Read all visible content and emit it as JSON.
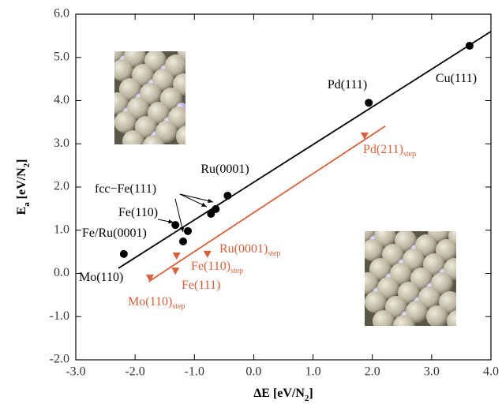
{
  "chart_data": {
    "type": "scatter",
    "xlabel": [
      {
        "text": "ΔE [eV/N"
      },
      {
        "text": "2",
        "sub": true
      },
      {
        "text": "]"
      }
    ],
    "ylabel": [
      {
        "text": "E"
      },
      {
        "text": "a",
        "sub": true
      },
      {
        "text": " [eV/N"
      },
      {
        "text": "2",
        "sub": true
      },
      {
        "text": "]"
      }
    ],
    "xlim": [
      -3,
      4
    ],
    "xticks": [
      {
        "value": -3,
        "label": "-3.0"
      },
      {
        "value": -2,
        "label": "-2.0"
      },
      {
        "value": -1,
        "label": "-1.0"
      },
      {
        "value": 0,
        "label": "0.0"
      },
      {
        "value": 1,
        "label": "1.0"
      },
      {
        "value": 2,
        "label": "2.0"
      },
      {
        "value": 3,
        "label": "3.0"
      },
      {
        "value": 4,
        "label": "4.0"
      }
    ],
    "ylim": [
      -2,
      6
    ],
    "yticks": [
      {
        "value": -2,
        "label": "-2.0"
      },
      {
        "value": -1,
        "label": "-1.0"
      },
      {
        "value": 0,
        "label": "0.0"
      },
      {
        "value": 1,
        "label": "1.0"
      },
      {
        "value": 2,
        "label": "2.0"
      },
      {
        "value": 3,
        "label": "3.0"
      },
      {
        "value": 4,
        "label": "4.0"
      },
      {
        "value": 5,
        "label": "5.0"
      },
      {
        "value": 6,
        "label": "6.0"
      }
    ],
    "series": [
      {
        "color": "#000000",
        "marker": "circle",
        "x": [
          -2.19,
          -1.32,
          -1.19,
          -1.11,
          -0.72,
          -0.64,
          -0.44,
          1.94,
          3.64
        ],
        "values": [
          0.45,
          1.12,
          0.74,
          0.98,
          1.38,
          1.49,
          1.8,
          3.95,
          5.27
        ]
      },
      {
        "color": "#d9603b",
        "marker": "triangle",
        "x": [
          -1.75,
          -1.3,
          -1.32,
          -0.78,
          1.87
        ],
        "values": [
          -0.1,
          0.41,
          0.06,
          0.45,
          3.19
        ]
      }
    ],
    "fit_lines": [
      {
        "color": "#000000",
        "x": [
          -2.28,
          4.0
        ],
        "values": [
          0.12,
          5.6
        ]
      },
      {
        "color": "#d9603b",
        "x": [
          -1.77,
          2.22
        ],
        "values": [
          -0.19,
          3.41
        ]
      }
    ],
    "annotations": [
      {
        "text": "Cu(111)",
        "color": "#000000"
      },
      {
        "text": "Pd(111)",
        "color": "#000000"
      },
      {
        "text": "Ru(0001)",
        "color": "#000000"
      },
      {
        "text": "fcc−Fe(111)",
        "color": "#000000"
      },
      {
        "text": "Fe(110)",
        "color": "#000000"
      },
      {
        "text": "Fe/Ru(0001)",
        "color": "#000000"
      },
      {
        "text": "Mo(110)",
        "color": "#000000"
      },
      {
        "text": "Pd(211)",
        "sub": "step",
        "color": "#d9603b"
      },
      {
        "text": "Ru(0001)",
        "sub": "step",
        "color": "#d9603b"
      },
      {
        "text": "Fe(110)",
        "sub": "step",
        "color": "#d9603b"
      },
      {
        "text": "Fe(111)",
        "color": "#d9603b"
      },
      {
        "text": "Mo(110)",
        "sub": "step",
        "color": "#d9603b"
      }
    ]
  }
}
